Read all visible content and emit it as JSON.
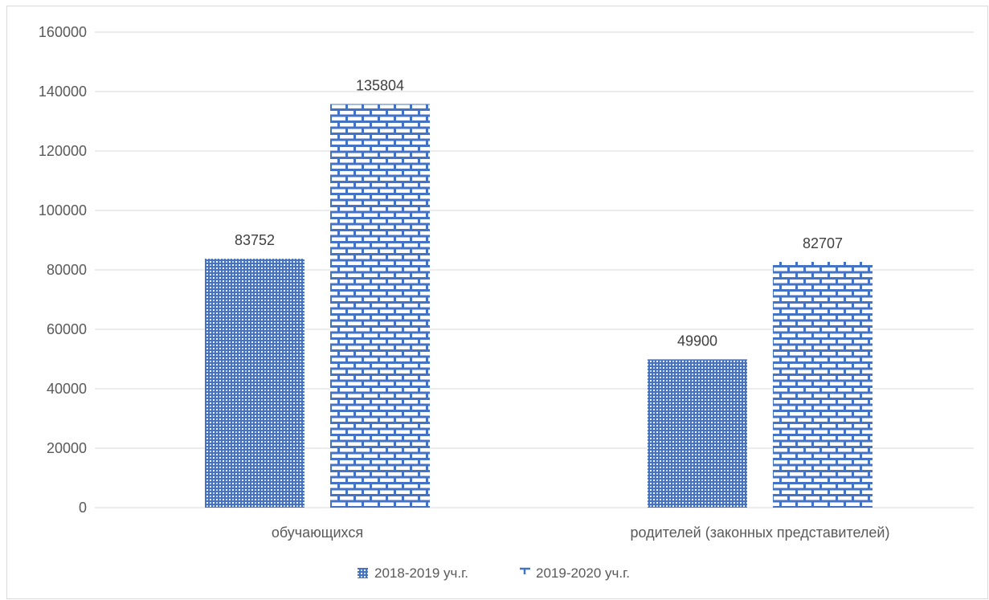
{
  "chart_data": {
    "type": "bar",
    "title": "",
    "xlabel": "",
    "ylabel": "",
    "categories": [
      "обучающихся",
      "родителей (законных представителей)"
    ],
    "series": [
      {
        "name": "2018-2019 уч.г.",
        "values": [
          83752,
          49900
        ],
        "labels": [
          "83752",
          "49900"
        ],
        "pattern": "checker",
        "color": "#4472c4"
      },
      {
        "name": "2019-2020 уч.г.",
        "values": [
          135804,
          82707
        ],
        "labels": [
          "135804",
          "82707"
        ],
        "pattern": "brick",
        "color": "#4472c4"
      }
    ],
    "ylim": [
      0,
      160000
    ],
    "yticks": [
      0,
      20000,
      40000,
      60000,
      80000,
      100000,
      120000,
      140000,
      160000
    ],
    "ytick_labels": [
      "0",
      "20000",
      "40000",
      "60000",
      "80000",
      "100000",
      "120000",
      "140000",
      "160000"
    ],
    "grid": true,
    "legend_position": "bottom"
  }
}
